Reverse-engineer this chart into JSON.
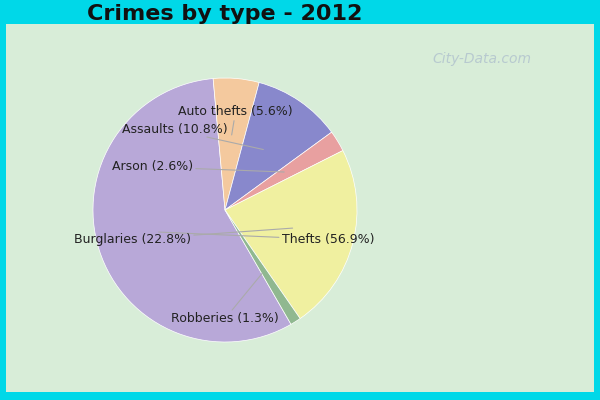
{
  "title": "Crimes by type - 2012",
  "title_fontsize": 16,
  "title_fontweight": "bold",
  "slices": [
    {
      "label": "Thefts (56.9%)",
      "value": 56.9,
      "color": "#b8a8d8"
    },
    {
      "label": "Auto thefts (5.6%)",
      "value": 5.6,
      "color": "#f4c99e"
    },
    {
      "label": "Assaults (10.8%)",
      "value": 10.8,
      "color": "#8888cc"
    },
    {
      "label": "Arson (2.6%)",
      "value": 2.6,
      "color": "#e8a0a0"
    },
    {
      "label": "Burglaries (22.8%)",
      "value": 22.8,
      "color": "#f0f0a0"
    },
    {
      "label": "Robberies (1.3%)",
      "value": 1.3,
      "color": "#90b890"
    }
  ],
  "bg_outer": "#00d8e8",
  "bg_inner": "#d8edd8",
  "watermark": "City-Data.com",
  "label_fontsize": 9,
  "label_color": "#222222"
}
